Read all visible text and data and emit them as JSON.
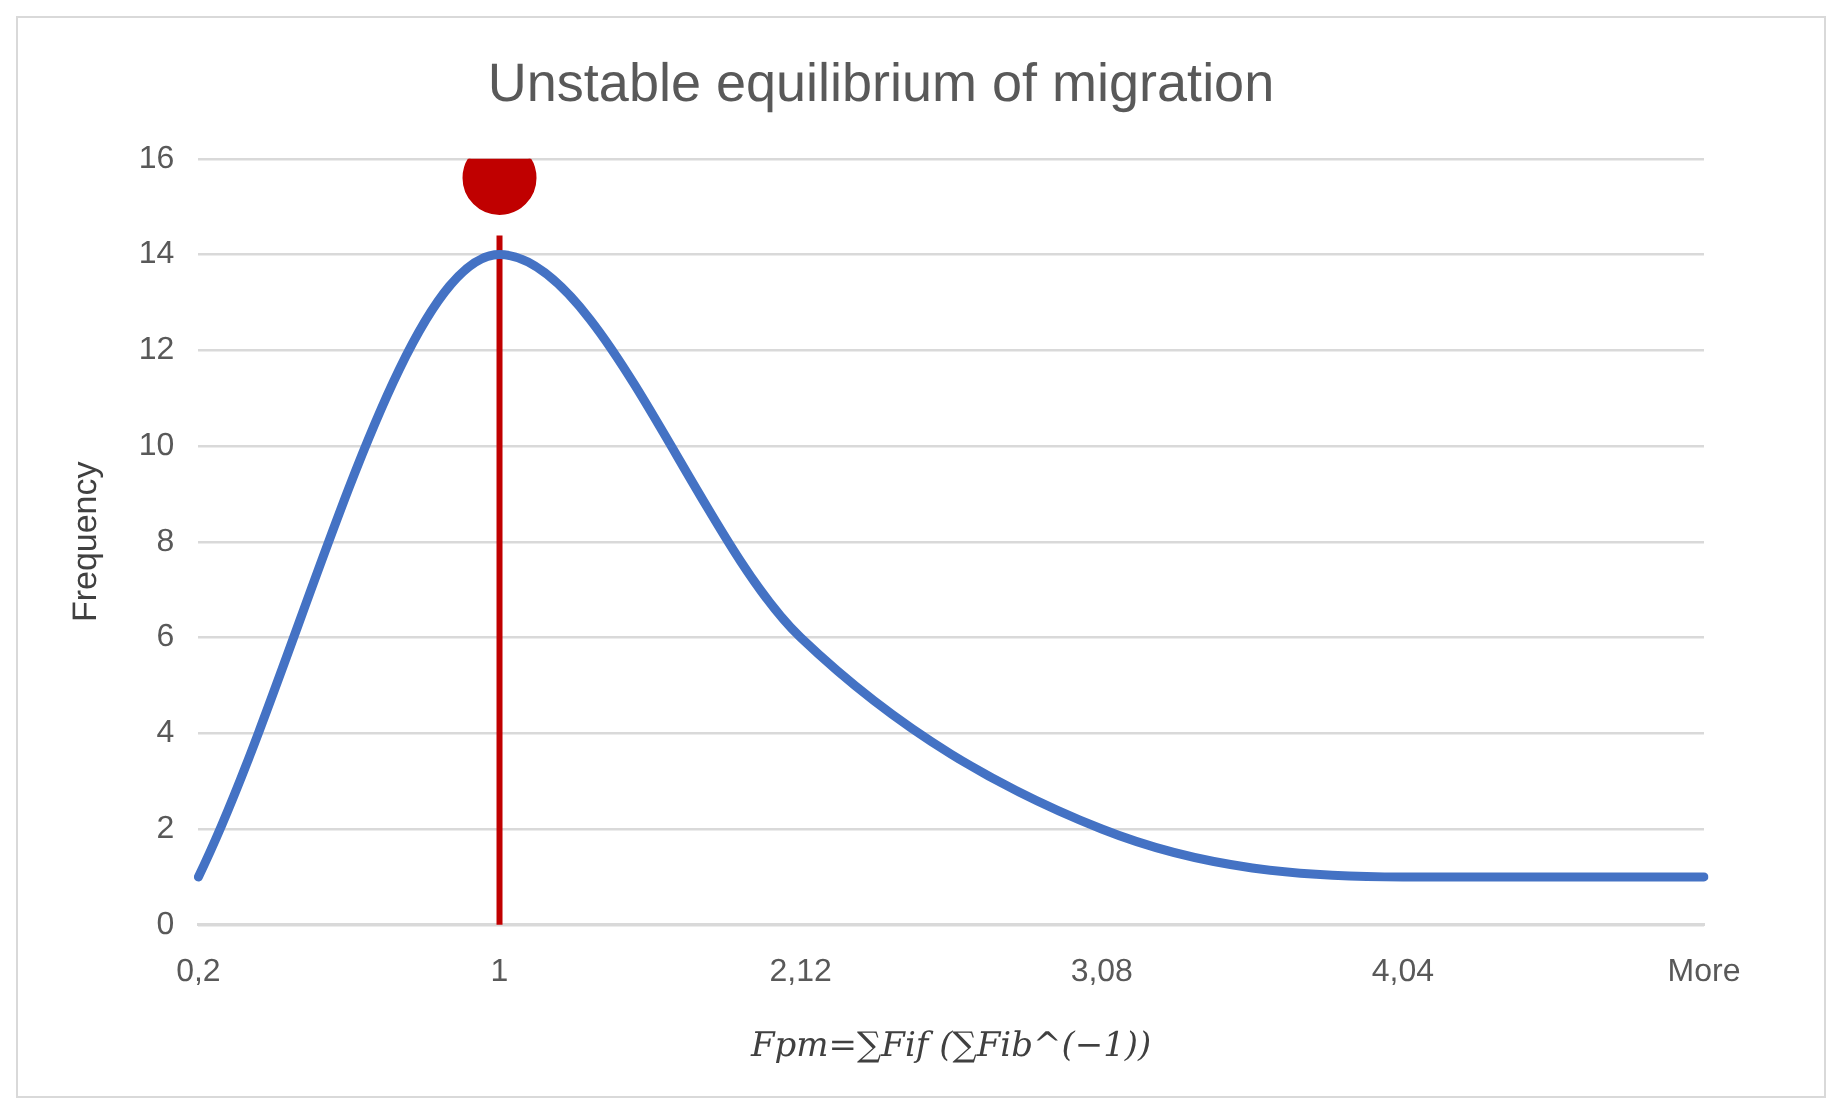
{
  "chart_data": {
    "type": "line",
    "title": "Unstable equilibrium of migration",
    "xlabel": "Fpm=∑Fif (∑Fib^(−1))",
    "ylabel": "Frequency",
    "categories": [
      "0,2",
      "1",
      "2,12",
      "3,08",
      "4,04",
      "More"
    ],
    "series": [
      {
        "color": "#4472c4",
        "marker": "none",
        "values": [
          1,
          14,
          6,
          2,
          1,
          1
        ]
      },
      {
        "type": "scatter",
        "color": "#c00000",
        "marker": "circle",
        "x": [
          "1"
        ],
        "values": [
          15.6
        ]
      }
    ],
    "ylim": [
      0,
      16
    ],
    "yticks": [
      0,
      2,
      4,
      6,
      8,
      10,
      12,
      14,
      16
    ],
    "grid": "y",
    "legend": false,
    "ref_lines": [
      {
        "axis": "x",
        "value": "1",
        "color": "#c00000"
      }
    ]
  }
}
